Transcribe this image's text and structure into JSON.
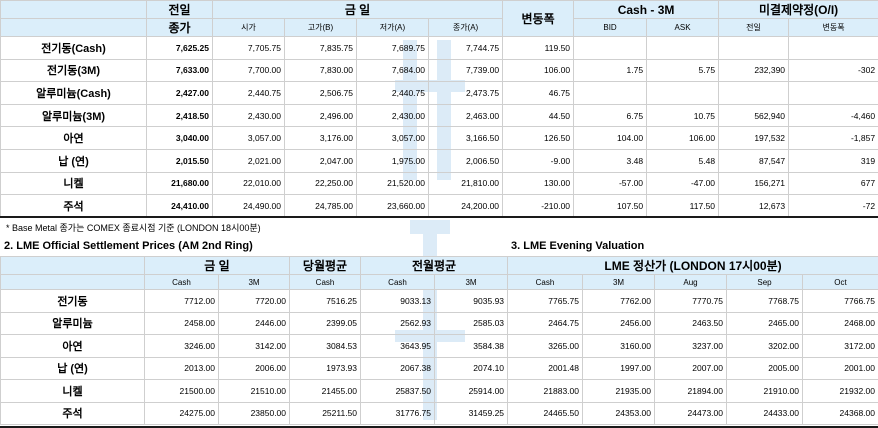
{
  "top": {
    "headers": {
      "prev_top": "전일",
      "prev_bottom": "종가",
      "today": "금     일",
      "open": "시가",
      "high": "고가(B)",
      "low": "저가(A)",
      "close": "종가(A)",
      "change": "변동폭",
      "cash3m": "Cash - 3M",
      "bid": "BID",
      "ask": "ASK",
      "oi": "미결제약정(O/I)",
      "oi_prev": "전일",
      "oi_change": "변동폭"
    },
    "rows": [
      {
        "label": "전기동(Cash)",
        "prev": "7,625.25",
        "open": "7,705.75",
        "high": "7,835.75",
        "low": "7,689.75",
        "close": "7,744.75",
        "change": "119.50",
        "bid": "",
        "ask": "",
        "oi": "",
        "oi_change": ""
      },
      {
        "label": "전기동(3M)",
        "prev": "7,633.00",
        "open": "7,700.00",
        "high": "7,830.00",
        "low": "7,684.00",
        "close": "7,739.00",
        "change": "106.00",
        "bid": "1.75",
        "ask": "5.75",
        "oi": "232,390",
        "oi_change": "-302"
      },
      {
        "label": "알루미늄(Cash)",
        "prev": "2,427.00",
        "open": "2,440.75",
        "high": "2,506.75",
        "low": "2,440.75",
        "close": "2,473.75",
        "change": "46.75",
        "bid": "",
        "ask": "",
        "oi": "",
        "oi_change": ""
      },
      {
        "label": "알루미늄(3M)",
        "prev": "2,418.50",
        "open": "2,430.00",
        "high": "2,496.00",
        "low": "2,430.00",
        "close": "2,463.00",
        "change": "44.50",
        "bid": "6.75",
        "ask": "10.75",
        "oi": "562,940",
        "oi_change": "-4,460"
      },
      {
        "label": "아연",
        "prev": "3,040.00",
        "open": "3,057.00",
        "high": "3,176.00",
        "low": "3,057.00",
        "close": "3,166.50",
        "change": "126.50",
        "bid": "104.00",
        "ask": "106.00",
        "oi": "197,532",
        "oi_change": "-1,857"
      },
      {
        "label": "납 (연)",
        "prev": "2,015.50",
        "open": "2,021.00",
        "high": "2,047.00",
        "low": "1,975.00",
        "close": "2,006.50",
        "change": "-9.00",
        "bid": "3.48",
        "ask": "5.48",
        "oi": "87,547",
        "oi_change": "319"
      },
      {
        "label": "니켈",
        "prev": "21,680.00",
        "open": "22,010.00",
        "high": "22,250.00",
        "low": "21,520.00",
        "close": "21,810.00",
        "change": "130.00",
        "bid": "-57.00",
        "ask": "-47.00",
        "oi": "156,271",
        "oi_change": "677"
      },
      {
        "label": "주석",
        "prev": "24,410.00",
        "open": "24,490.00",
        "high": "24,785.00",
        "low": "23,660.00",
        "close": "24,200.00",
        "change": "-210.00",
        "bid": "107.50",
        "ask": "117.50",
        "oi": "12,673",
        "oi_change": "-72"
      }
    ]
  },
  "note": "* Base Metal 종가는 COMEX 종료시점 기준 (LONDON 18시00분)",
  "settlement": {
    "title": "2. LME Official Settlement Prices (AM 2nd Ring)",
    "headers": {
      "today": "금     일",
      "cur_avg": "당월평균",
      "prev_avg": "전월평균",
      "cash": "Cash",
      "m3": "3M"
    },
    "rows": [
      {
        "label": "전기동",
        "cash": "7712.00",
        "m3": "7720.00",
        "cur_avg": "7516.25",
        "prev_cash": "9033.13",
        "prev_3m": "9035.93"
      },
      {
        "label": "알루미늄",
        "cash": "2458.00",
        "m3": "2446.00",
        "cur_avg": "2399.05",
        "prev_cash": "2562.93",
        "prev_3m": "2585.03"
      },
      {
        "label": "아연",
        "cash": "3246.00",
        "m3": "3142.00",
        "cur_avg": "3084.53",
        "prev_cash": "3643.95",
        "prev_3m": "3584.38"
      },
      {
        "label": "납 (연)",
        "cash": "2013.00",
        "m3": "2006.00",
        "cur_avg": "1973.93",
        "prev_cash": "2067.38",
        "prev_3m": "2074.10"
      },
      {
        "label": "니켈",
        "cash": "21500.00",
        "m3": "21510.00",
        "cur_avg": "21455.00",
        "prev_cash": "25837.50",
        "prev_3m": "25914.00"
      },
      {
        "label": "주석",
        "cash": "24275.00",
        "m3": "23850.00",
        "cur_avg": "25211.50",
        "prev_cash": "31776.75",
        "prev_3m": "31459.25"
      }
    ]
  },
  "evening": {
    "title": "3. LME Evening Valuation",
    "headers": {
      "group": "LME 정산가 (LONDON 17시00분)",
      "cash": "Cash",
      "m3": "3M",
      "aug": "Aug",
      "sep": "Sep",
      "oct": "Oct"
    },
    "rows": [
      {
        "cash": "7765.75",
        "m3": "7762.00",
        "aug": "7770.75",
        "sep": "7768.75",
        "oct": "7766.75"
      },
      {
        "cash": "2464.75",
        "m3": "2456.00",
        "aug": "2463.50",
        "sep": "2465.00",
        "oct": "2468.00"
      },
      {
        "cash": "3265.00",
        "m3": "3160.00",
        "aug": "3237.00",
        "sep": "3202.00",
        "oct": "3172.00"
      },
      {
        "cash": "2001.48",
        "m3": "1997.00",
        "aug": "2007.00",
        "sep": "2005.00",
        "oct": "2001.00"
      },
      {
        "cash": "21883.00",
        "m3": "21935.00",
        "aug": "21894.00",
        "sep": "21910.00",
        "oct": "21932.00"
      },
      {
        "cash": "24465.50",
        "m3": "24353.00",
        "aug": "24473.00",
        "sep": "24433.00",
        "oct": "24368.00"
      }
    ]
  }
}
